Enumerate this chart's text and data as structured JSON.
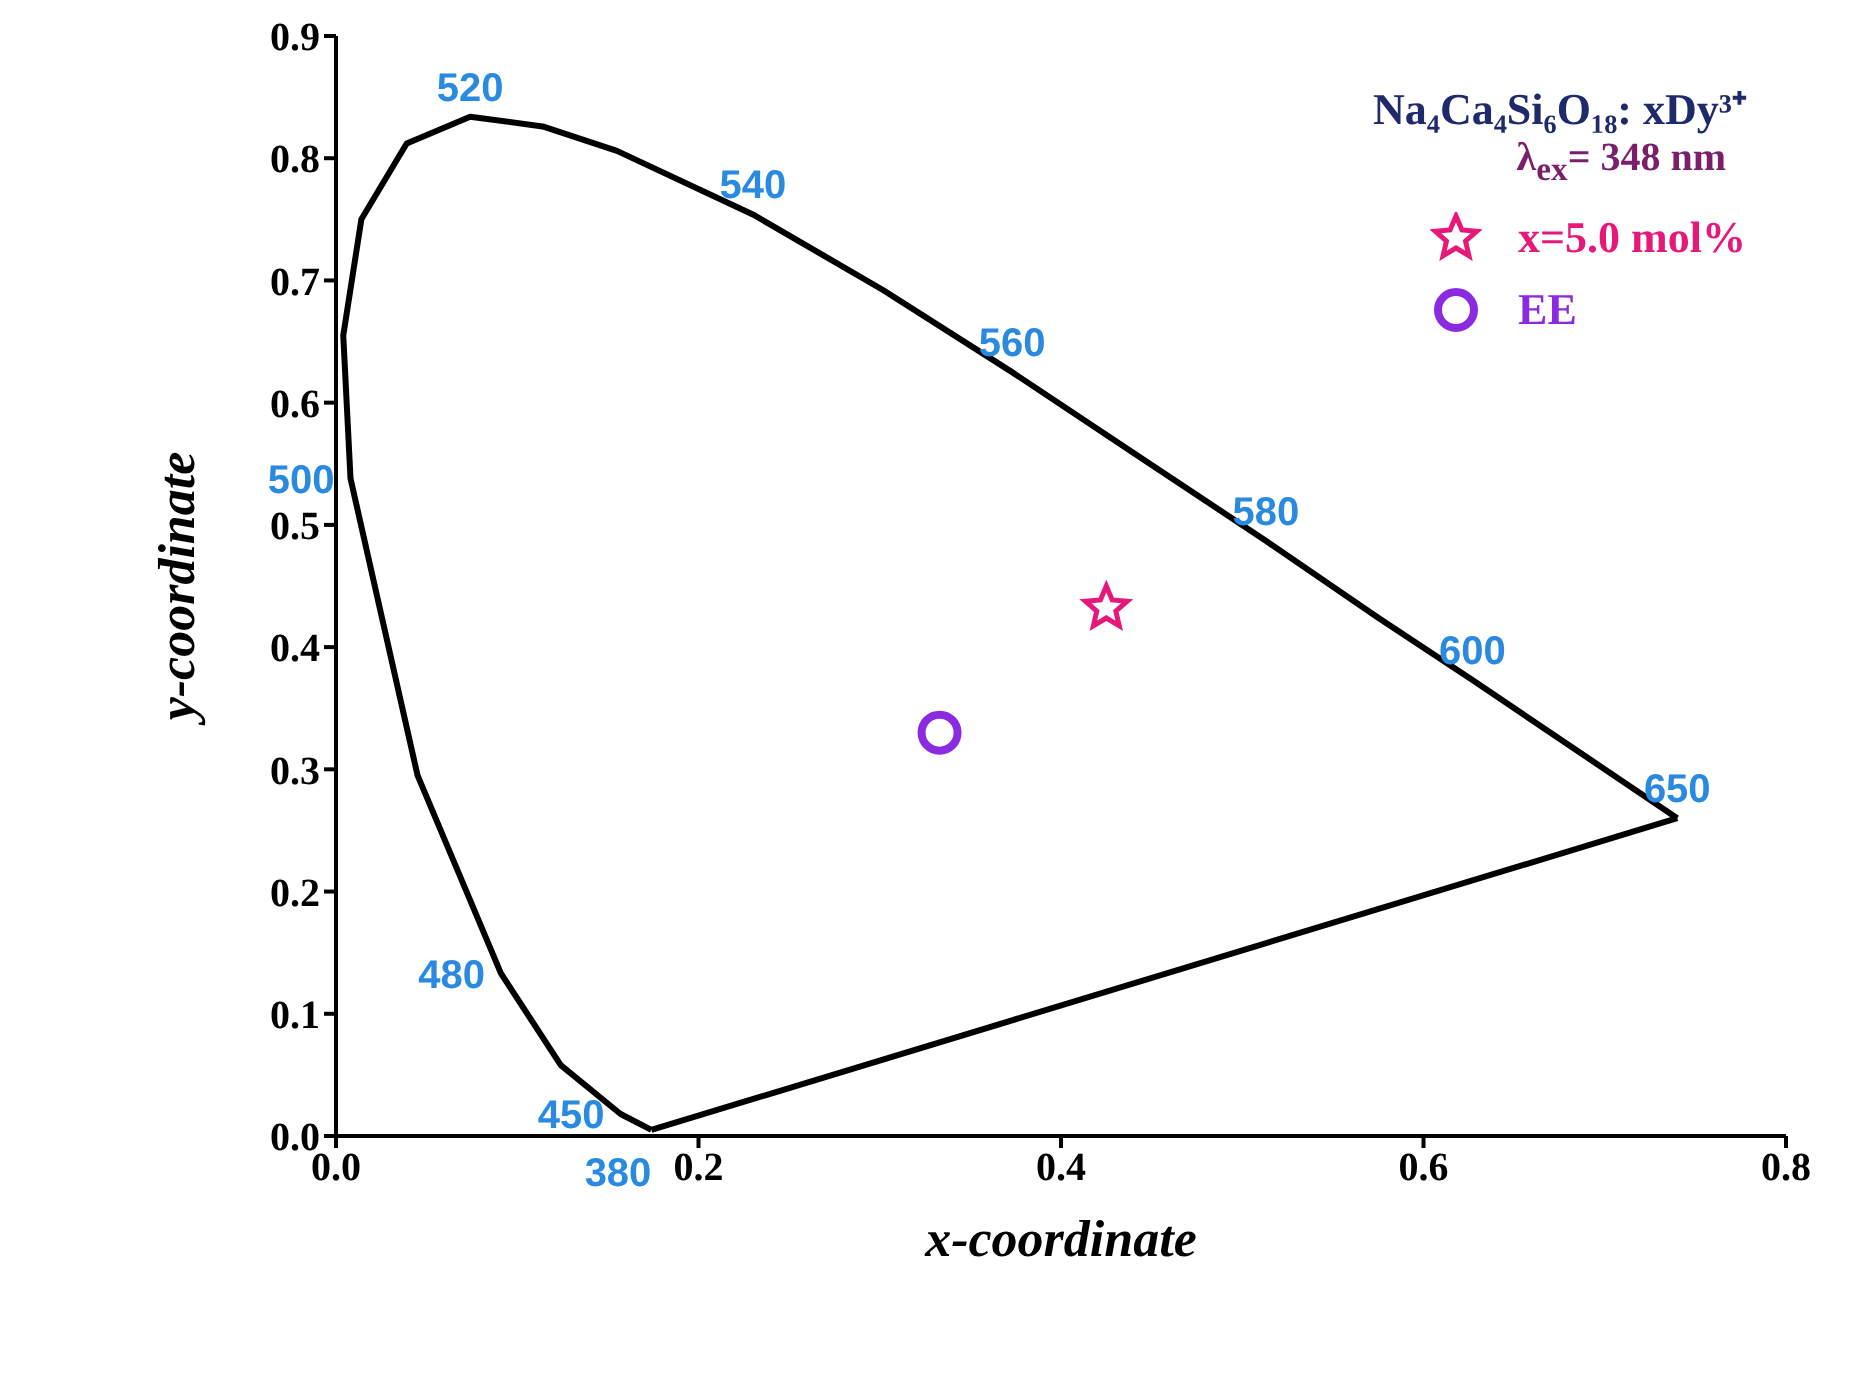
{
  "chart_data": {
    "type": "scatter",
    "title": "Na₄Ca₄Si₆O₁₈: xDy³⁺",
    "subtitle": "λ$_{ex}$= 348 nm",
    "xlabel": "x-coordinate",
    "ylabel": "y-coordinate",
    "xlim": [
      0,
      0.8
    ],
    "xticks": [
      {
        "value": 0,
        "label": "0.0"
      },
      0.2,
      0.4,
      0.6,
      0.8
    ],
    "ylim": [
      0,
      0.9
    ],
    "yticks": [
      {
        "value": 0,
        "label": "0.0"
      },
      0.1,
      0.2,
      0.3,
      0.4,
      0.5,
      0.6,
      0.7,
      0.8,
      0.9
    ],
    "grid": false,
    "legend": "top right",
    "series": [
      {
        "type": "line",
        "color": "#000000",
        "marker": "none",
        "x": [
          0.174,
          0.157,
          0.124,
          0.091,
          0.045,
          0.008,
          0.004,
          0.014,
          0.039,
          0.074,
          0.114,
          0.155,
          0.23,
          0.302,
          0.373,
          0.444,
          0.513,
          0.575,
          0.627,
          0.692,
          0.74
        ],
        "values": [
          0.005,
          0.018,
          0.058,
          0.133,
          0.295,
          0.538,
          0.655,
          0.75,
          0.812,
          0.834,
          0.826,
          0.806,
          0.754,
          0.692,
          0.625,
          0.555,
          0.487,
          0.424,
          0.373,
          0.308,
          0.26
        ]
      },
      {
        "type": "line",
        "color": "#000000",
        "marker": "none",
        "x": [
          0.174,
          0.74
        ],
        "values": [
          0.005,
          0.26
        ]
      },
      {
        "name": "x=5.0 mol%",
        "color": "#e6197a",
        "marker": "star",
        "x": [
          0.425
        ],
        "values": [
          0.432
        ]
      },
      {
        "name": "EE",
        "color": "#8a2be2",
        "marker": "circle",
        "x": [
          0.333
        ],
        "values": [
          0.33
        ]
      }
    ],
    "annotations": [
      {
        "text": "520",
        "x": 0.074,
        "y": 0.834
      },
      {
        "text": "540",
        "x": 0.23,
        "y": 0.754
      },
      {
        "text": "560",
        "x": 0.373,
        "y": 0.625
      },
      {
        "text": "580",
        "x": 0.513,
        "y": 0.487
      },
      {
        "text": "600",
        "x": 0.627,
        "y": 0.373
      },
      {
        "text": "650",
        "x": 0.74,
        "y": 0.26
      },
      {
        "text": "500",
        "x": 0.008,
        "y": 0.538
      },
      {
        "text": "480",
        "x": 0.091,
        "y": 0.133
      },
      {
        "text": "450",
        "x": 0.157,
        "y": 0.018
      },
      {
        "text": "380",
        "x": 0.174,
        "y": 0.005
      }
    ]
  }
}
